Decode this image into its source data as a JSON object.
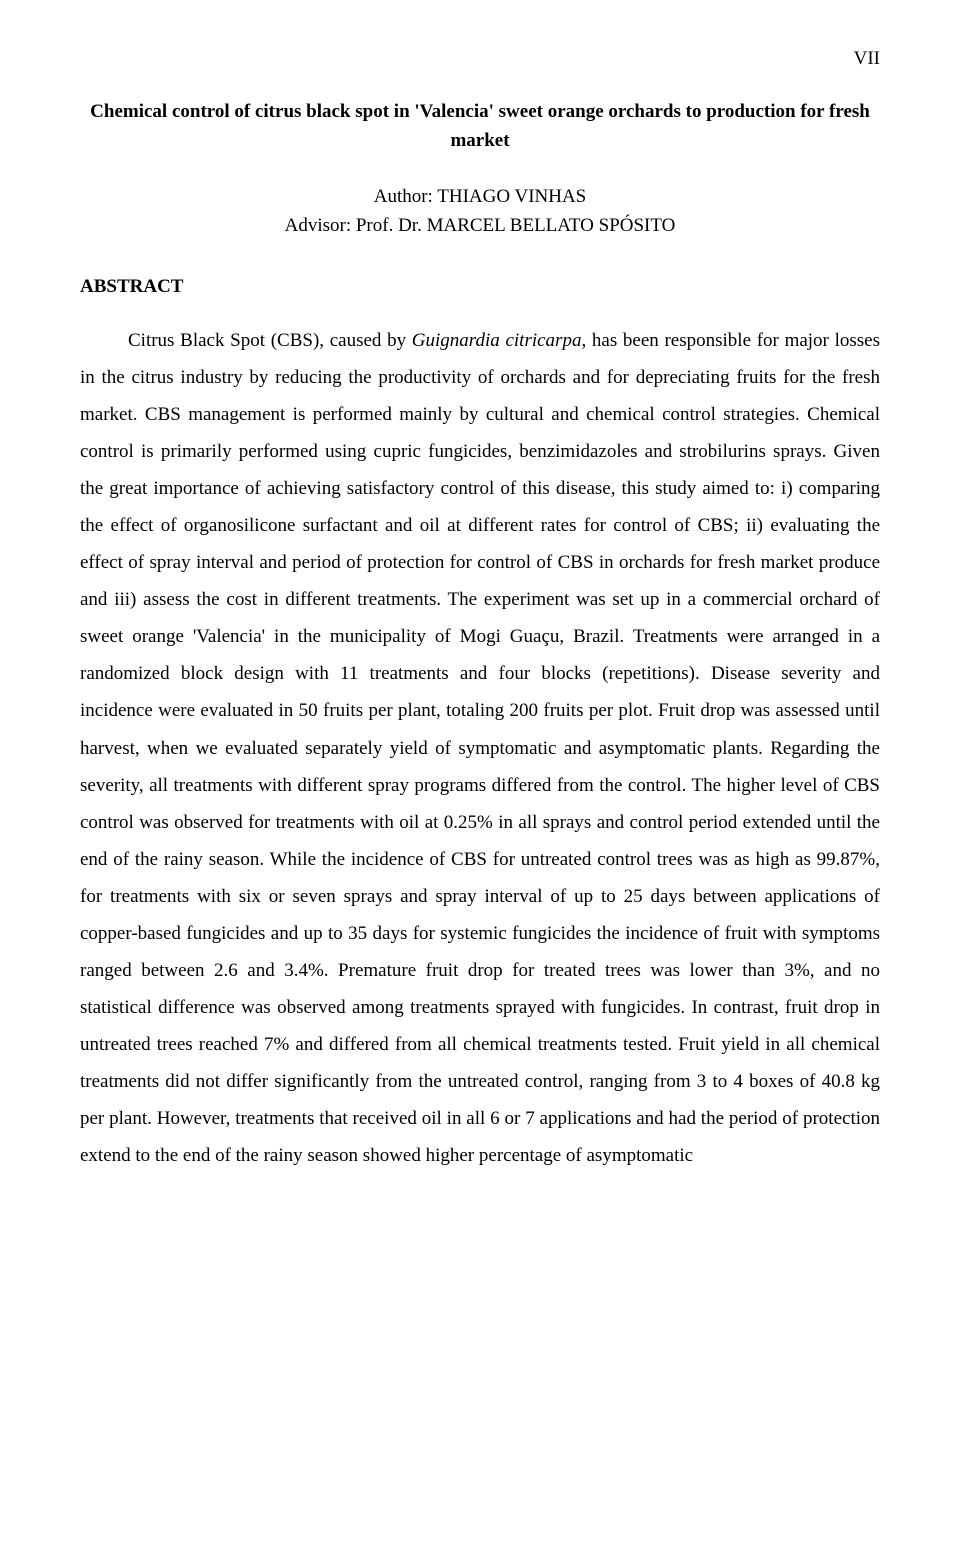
{
  "page_number": "VII",
  "title": "Chemical control of citrus black spot in 'Valencia' sweet orange orchards to production for fresh market",
  "author_label": "Author:",
  "author_name": "THIAGO VINHAS",
  "advisor_label": "Advisor:",
  "advisor_name": "Prof. Dr. MARCEL BELLATO SPÓSITO",
  "abstract_heading": "ABSTRACT",
  "abstract": {
    "part1": "Citrus Black Spot (CBS), caused by ",
    "species": "Guignardia citricarpa",
    "part2": ", has been responsible for major losses in the citrus industry by reducing the productivity of orchards and for depreciating fruits for the fresh market. CBS management is performed mainly by cultural and chemical control strategies. Chemical control is primarily performed using cupric fungicides, benzimidazoles and strobilurins sprays. Given the great importance of achieving satisfactory control of this disease, this study aimed to: i) comparing  the effect of organosilicone surfactant and oil at different rates for control of CBS; ii) evaluating the effect of spray interval and period of protection for control of CBS in orchards for fresh market produce and iii) assess the cost in different treatments. The experiment was set up in a commercial orchard of sweet orange 'Valencia' in the municipality of Mogi Guaçu, Brazil. Treatments were arranged in a randomized block design with 11 treatments and four blocks (repetitions). Disease severity and incidence were evaluated in 50 fruits per plant, totaling 200 fruits per plot. Fruit drop was assessed until harvest, when we evaluated separately yield of symptomatic and asymptomatic plants. Regarding the severity, all treatments with different spray programs differed from the control. The higher level of CBS control was observed for treatments with oil at 0.25% in all sprays and control period extended until the end of the rainy season. While the incidence of CBS for untreated control trees was as high as 99.87%, for treatments with six or seven sprays and spray interval of up to 25 days between applications of copper-based fungicides  and up to 35 days for systemic fungicides the incidence of fruit with symptoms  ranged between 2.6 and 3.4%. Premature fruit drop for treated trees was lower than 3%, and no statistical difference was observed among treatments sprayed with fungicides. In contrast, fruit drop in untreated trees reached 7% and differed from all chemical treatments tested. Fruit yield in all chemical treatments did not differ significantly from the untreated control, ranging from 3 to 4 boxes of 40.8 kg per plant. However, treatments that received oil in all 6 or 7 applications and had the period of protection extend to the end of the rainy season showed higher percentage of asymptomatic"
  }
}
